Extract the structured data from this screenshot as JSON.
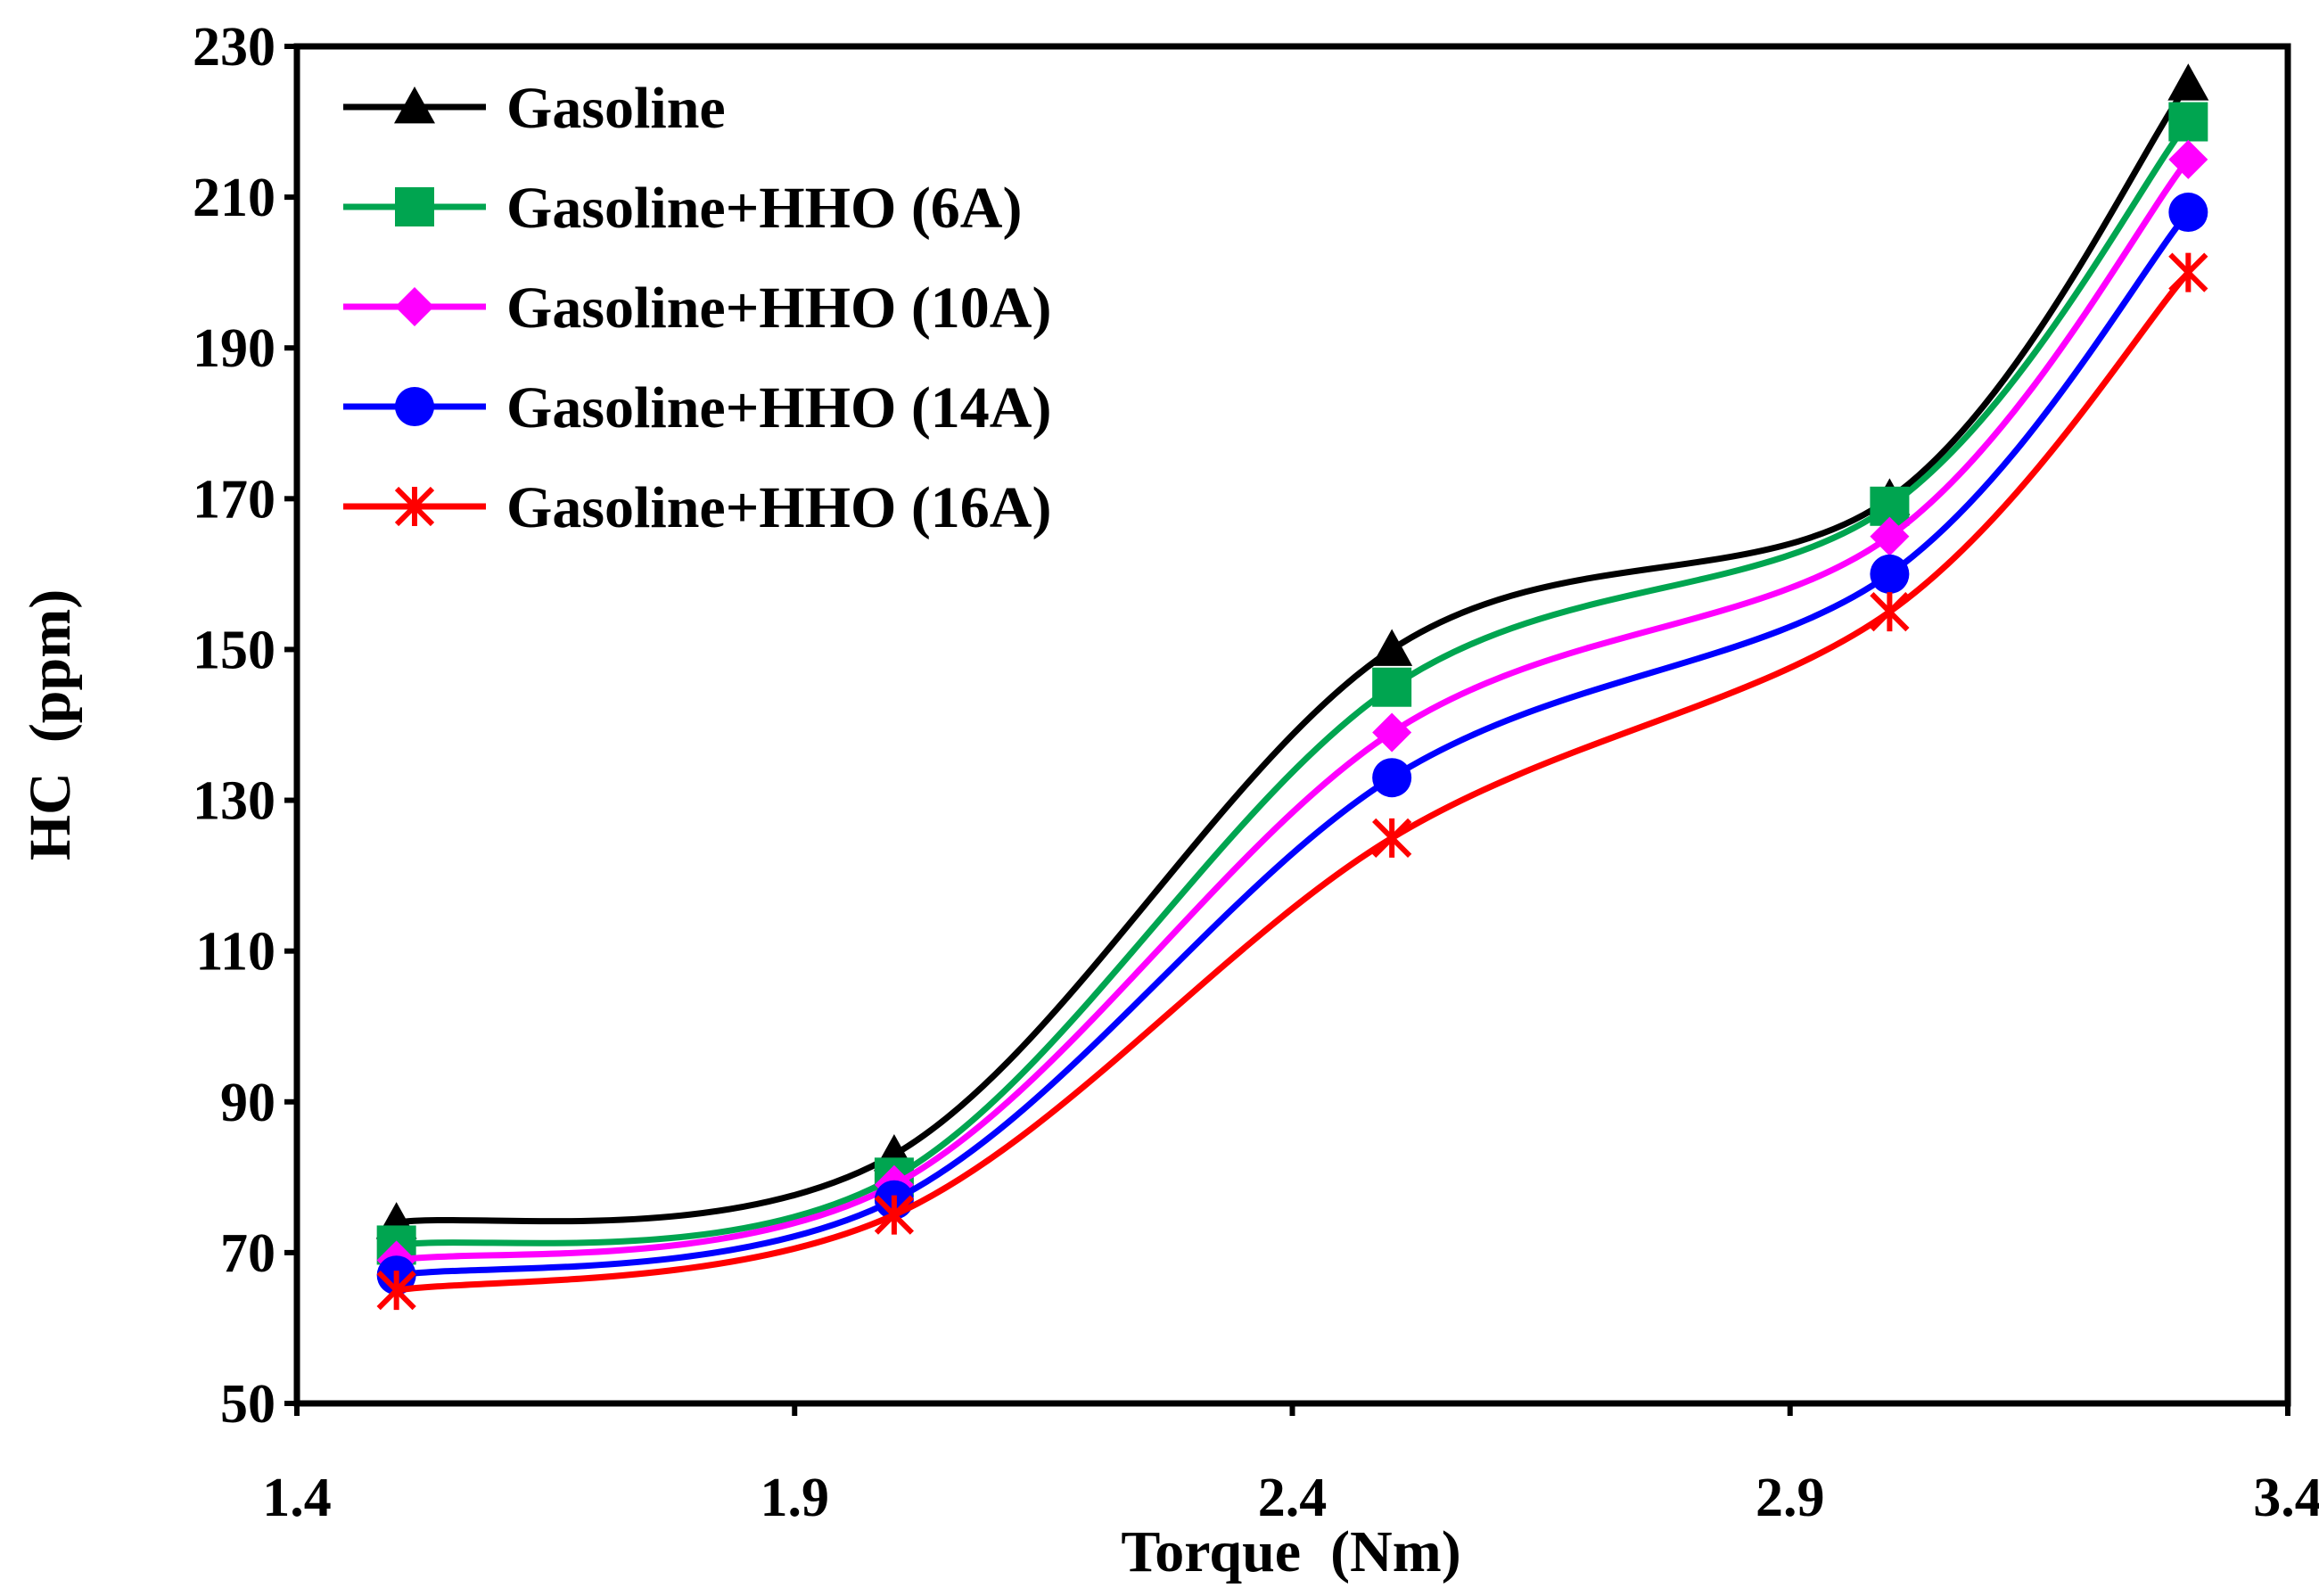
{
  "chart_data": {
    "type": "line",
    "title": "",
    "xlabel": "Torque  (Nm)",
    "ylabel": "HC  (ppm)",
    "xlim": [
      1.4,
      3.4
    ],
    "ylim": [
      50,
      230
    ],
    "x_ticks": [
      "1.4",
      "1.9",
      "2.4",
      "2.9",
      "3.4"
    ],
    "y_ticks": [
      "50",
      "70",
      "90",
      "110",
      "130",
      "150",
      "170",
      "190",
      "210",
      "230"
    ],
    "x": [
      1.5,
      2.0,
      2.5,
      3.0,
      3.3
    ],
    "legend_position": "top-left",
    "grid": false,
    "series": [
      {
        "name": "Gasoline",
        "values": [
          74,
          83,
          150,
          170,
          225
        ],
        "color": "#000000",
        "marker": "triangle"
      },
      {
        "name": "Gasoline+HHO (6A)",
        "values": [
          71,
          80,
          145,
          169,
          220
        ],
        "color": "#00A550",
        "marker": "square"
      },
      {
        "name": "Gasoline+HHO (10A)",
        "values": [
          69,
          79,
          139,
          165,
          215
        ],
        "color": "#FF00FF",
        "marker": "diamond"
      },
      {
        "name": "Gasoline+HHO (14A)",
        "values": [
          67,
          77,
          133,
          160,
          208
        ],
        "color": "#0000FF",
        "marker": "circle"
      },
      {
        "name": "Gasoline+HHO (16A)",
        "values": [
          65,
          75,
          125,
          155,
          200
        ],
        "color": "#FF0000",
        "marker": "asterisk"
      }
    ]
  }
}
